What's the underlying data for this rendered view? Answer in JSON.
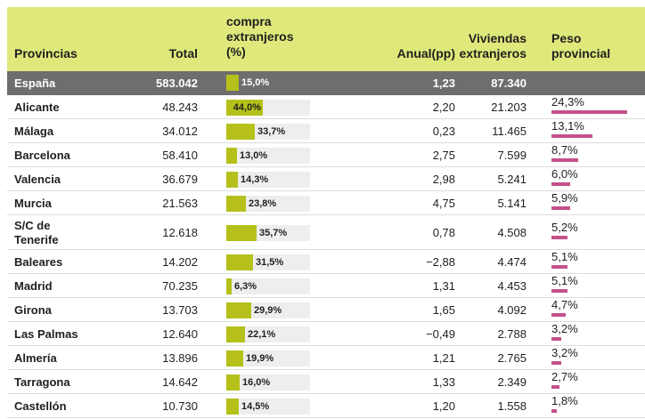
{
  "headers": {
    "provincias": "Provincias",
    "total": "Total",
    "compra_l1": "compra",
    "compra_l2": "extranjeros",
    "compra_l3": "(%)",
    "anual": "Anual(pp)",
    "viv_l1": "Viviendas",
    "viv_l2": "extranjeros",
    "peso_l1": "Peso",
    "peso_l2": "provincial"
  },
  "total_row": {
    "provincia": "España",
    "total": "583.042",
    "compra_pct": 15.0,
    "compra_label": "15,0%",
    "anual": "1,23",
    "viviendas": "87.340"
  },
  "chart_data": {
    "type": "table",
    "columns": [
      "Provincias",
      "Total",
      "compra extranjeros (%)",
      "Anual(pp)",
      "Viviendas extranjeros",
      "Peso provincial"
    ],
    "rows": [
      {
        "provincia": "Alicante",
        "total": "48.243",
        "compra_pct": 44.0,
        "compra_label": "44,0%",
        "anual": "2,20",
        "viviendas": "21.203",
        "peso": 24.3,
        "peso_label": "24,3%"
      },
      {
        "provincia": "Málaga",
        "total": "34.012",
        "compra_pct": 33.7,
        "compra_label": "33,7%",
        "anual": "0,23",
        "viviendas": "11.465",
        "peso": 13.1,
        "peso_label": "13,1%"
      },
      {
        "provincia": "Barcelona",
        "total": "58.410",
        "compra_pct": 13.0,
        "compra_label": "13,0%",
        "anual": "2,75",
        "viviendas": "7.599",
        "peso": 8.7,
        "peso_label": "8,7%"
      },
      {
        "provincia": "Valencia",
        "total": "36.679",
        "compra_pct": 14.3,
        "compra_label": "14,3%",
        "anual": "2,98",
        "viviendas": "5.241",
        "peso": 6.0,
        "peso_label": "6,0%"
      },
      {
        "provincia": "Murcia",
        "total": "21.563",
        "compra_pct": 23.8,
        "compra_label": "23,8%",
        "anual": "4,75",
        "viviendas": "5.141",
        "peso": 5.9,
        "peso_label": "5,9%"
      },
      {
        "provincia": "S/C de Tenerife",
        "provincia_l1": "S/C de",
        "provincia_l2": "Tenerife",
        "total": "12.618",
        "compra_pct": 35.7,
        "compra_label": "35,7%",
        "anual": "0,78",
        "viviendas": "4.508",
        "peso": 5.2,
        "peso_label": "5,2%"
      },
      {
        "provincia": "Baleares",
        "total": "14.202",
        "compra_pct": 31.5,
        "compra_label": "31,5%",
        "anual": "−2,88",
        "viviendas": "4.474",
        "peso": 5.1,
        "peso_label": "5,1%"
      },
      {
        "provincia": "Madrid",
        "total": "70.235",
        "compra_pct": 6.3,
        "compra_label": "6,3%",
        "anual": "1,31",
        "viviendas": "4.453",
        "peso": 5.1,
        "peso_label": "5,1%"
      },
      {
        "provincia": "Girona",
        "total": "13.703",
        "compra_pct": 29.9,
        "compra_label": "29,9%",
        "anual": "1,65",
        "viviendas": "4.092",
        "peso": 4.7,
        "peso_label": "4,7%"
      },
      {
        "provincia": "Las Palmas",
        "total": "12.640",
        "compra_pct": 22.1,
        "compra_label": "22,1%",
        "anual": "−0,49",
        "viviendas": "2.788",
        "peso": 3.2,
        "peso_label": "3,2%"
      },
      {
        "provincia": "Almería",
        "total": "13.896",
        "compra_pct": 19.9,
        "compra_label": "19,9%",
        "anual": "1,21",
        "viviendas": "2.765",
        "peso": 3.2,
        "peso_label": "3,2%"
      },
      {
        "provincia": "Tarragona",
        "total": "14.642",
        "compra_pct": 16.0,
        "compra_label": "16,0%",
        "anual": "1,33",
        "viviendas": "2.349",
        "peso": 2.7,
        "peso_label": "2,7%"
      },
      {
        "provincia": "Castellón",
        "total": "10.730",
        "compra_pct": 14.5,
        "compra_label": "14,5%",
        "anual": "1,20",
        "viviendas": "1.558",
        "peso": 1.8,
        "peso_label": "1,8%"
      }
    ],
    "colors": {
      "header_bg": "#dfe87a",
      "total_row_bg": "#6e6e6e",
      "compra_bar": "#b5c11a",
      "compra_bar_bg": "#eeeeee",
      "peso_bar": "#c4508c"
    }
  }
}
